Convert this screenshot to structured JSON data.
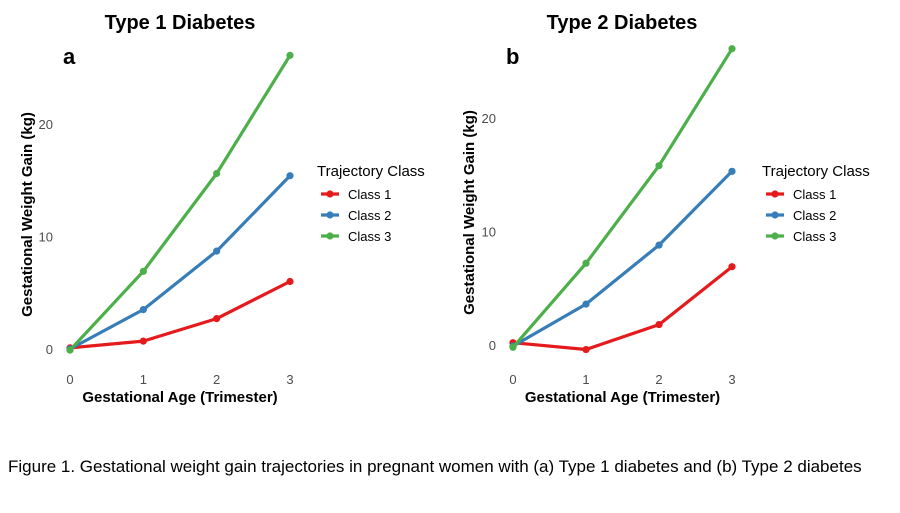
{
  "chart_data": [
    {
      "type": "line",
      "title": "Type 1 Diabetes",
      "panel_label": "a",
      "xlabel": "Gestational Age (Trimester)",
      "ylabel": "Gestational Weight Gain (kg)",
      "x": [
        0,
        1,
        2,
        3
      ],
      "xticks": [
        0,
        1,
        2,
        3
      ],
      "yticks": [
        0,
        10,
        20
      ],
      "xlim": [
        0,
        3
      ],
      "ylim": [
        0,
        26.3
      ],
      "grid": false,
      "legend_title": "Trajectory Class",
      "legend_position": "right",
      "series": [
        {
          "name": "Class 1",
          "color": "#e41a1c",
          "values": [
            0.1,
            0.7,
            2.7,
            6.0
          ]
        },
        {
          "name": "Class 2",
          "color": "#377eb8",
          "values": [
            0.0,
            3.5,
            8.7,
            15.4
          ]
        },
        {
          "name": "Class 3",
          "color": "#4daf4a",
          "values": [
            -0.1,
            6.9,
            15.6,
            26.1
          ]
        }
      ]
    },
    {
      "type": "line",
      "title": "Type 2 Diabetes",
      "panel_label": "b",
      "xlabel": "Gestational Age (Trimester)",
      "ylabel": "Gestational Weight Gain (kg)",
      "x": [
        0,
        1,
        2,
        3
      ],
      "xticks": [
        0,
        1,
        2,
        3
      ],
      "yticks": [
        0,
        10,
        20
      ],
      "xlim": [
        0,
        3
      ],
      "ylim": [
        -0.4,
        26.3
      ],
      "grid": false,
      "legend_title": "Trajectory Class",
      "legend_position": "right",
      "series": [
        {
          "name": "Class 1",
          "color": "#e41a1c",
          "values": [
            0.2,
            -0.4,
            1.8,
            6.9
          ]
        },
        {
          "name": "Class 2",
          "color": "#377eb8",
          "values": [
            -0.1,
            3.6,
            8.8,
            15.3
          ]
        },
        {
          "name": "Class 3",
          "color": "#4daf4a",
          "values": [
            -0.2,
            7.2,
            15.8,
            26.1
          ]
        }
      ]
    }
  ],
  "caption": "Figure 1. Gestational weight gain trajectories in pregnant women with (a) Type 1 diabetes and (b) Type 2 diabetes"
}
